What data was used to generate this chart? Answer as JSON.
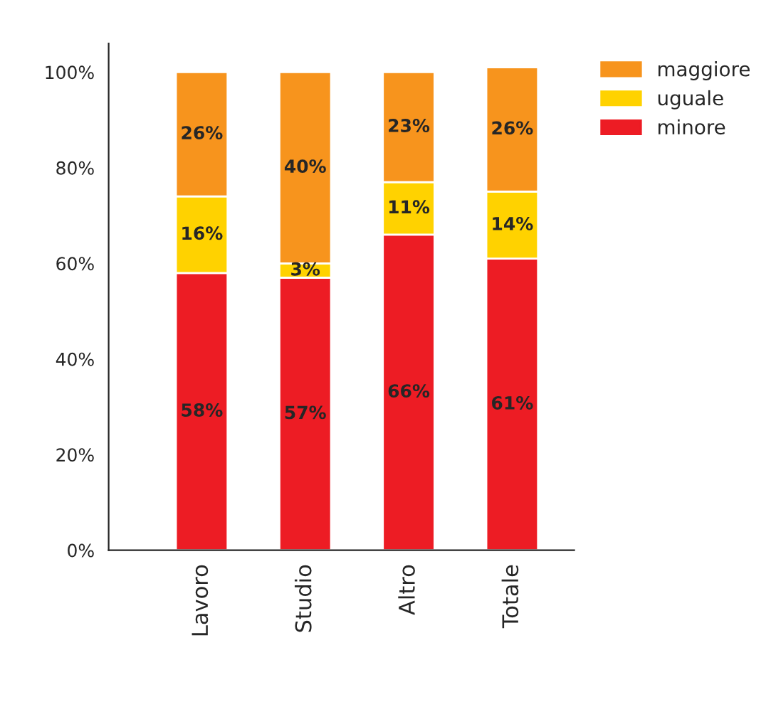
{
  "chart_data": {
    "type": "bar",
    "stacked": true,
    "categories": [
      "Lavoro",
      "Studio",
      "Altro",
      "Totale"
    ],
    "series": [
      {
        "name": "minore",
        "color": "#ed1c24",
        "values": [
          58,
          57,
          66,
          61
        ],
        "value_labels": [
          "58%",
          "57%",
          "66%",
          "61%"
        ]
      },
      {
        "name": "uguale",
        "color": "#ffd200",
        "values": [
          16,
          3,
          11,
          14
        ],
        "value_labels": [
          "16%",
          "3%",
          "11%",
          "14%"
        ]
      },
      {
        "name": "maggiore",
        "color": "#f7941d",
        "values": [
          26,
          40,
          23,
          26
        ],
        "value_labels": [
          "26%",
          "40%",
          "23%",
          "26%"
        ]
      }
    ],
    "ylim": [
      0,
      106
    ],
    "yticks": [
      {
        "value": 0,
        "label": "0%"
      },
      {
        "value": 20,
        "label": "20%"
      },
      {
        "value": 40,
        "label": "40%"
      },
      {
        "value": 60,
        "label": "60%"
      },
      {
        "value": 80,
        "label": "80%"
      },
      {
        "value": 100,
        "label": "100%"
      }
    ],
    "legend": "top right",
    "grid": false
  }
}
